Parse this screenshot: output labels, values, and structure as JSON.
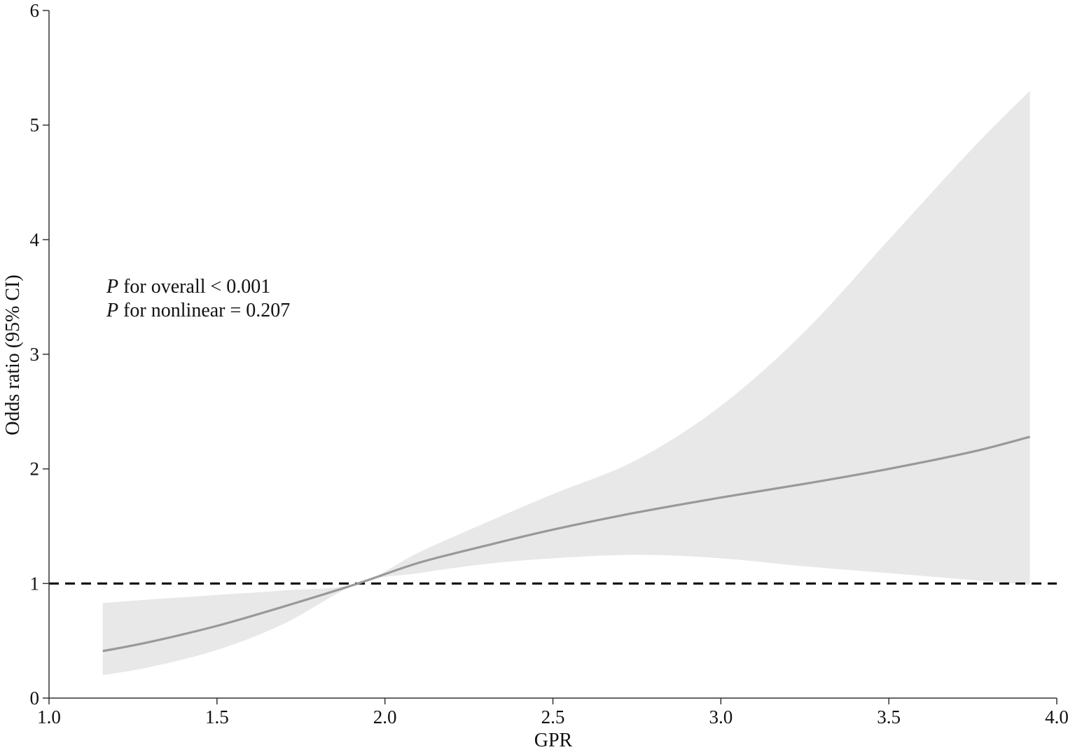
{
  "chart_data": {
    "type": "line",
    "xlabel": "GPR",
    "ylabel": "Odds ratio (95% CI)",
    "xlim": [
      1.0,
      4.0
    ],
    "ylim": [
      0,
      6
    ],
    "x_ticks": [
      "1.0",
      "1.5",
      "2.0",
      "2.5",
      "3.0",
      "3.5",
      "4.0"
    ],
    "y_ticks": [
      "0",
      "1",
      "2",
      "3",
      "4",
      "5",
      "6"
    ],
    "reference_line": {
      "y": 1,
      "style": "dashed"
    },
    "annotations": [
      {
        "italic": "P",
        "text": " for overall < 0.001"
      },
      {
        "italic": "P",
        "text": " for nonlinear = 0.207"
      }
    ],
    "series": [
      {
        "x": [
          1.16,
          1.3,
          1.5,
          1.7,
          1.92,
          2.1,
          2.3,
          2.5,
          2.75,
          3.0,
          3.25,
          3.5,
          3.75,
          3.92
        ],
        "y": [
          0.41,
          0.49,
          0.63,
          0.8,
          1.0,
          1.18,
          1.33,
          1.47,
          1.62,
          1.75,
          1.87,
          2.0,
          2.15,
          2.28
        ],
        "lower": [
          0.2,
          0.27,
          0.42,
          0.65,
          1.0,
          1.09,
          1.17,
          1.22,
          1.25,
          1.22,
          1.15,
          1.09,
          1.03,
          0.99
        ],
        "upper": [
          0.83,
          0.86,
          0.9,
          0.94,
          1.0,
          1.27,
          1.53,
          1.78,
          2.08,
          2.55,
          3.2,
          4.0,
          4.8,
          5.3
        ]
      }
    ],
    "colors": {
      "line": "#999999",
      "band": "#e8e8e8",
      "reference": "#000000",
      "axis": "#333333"
    }
  }
}
